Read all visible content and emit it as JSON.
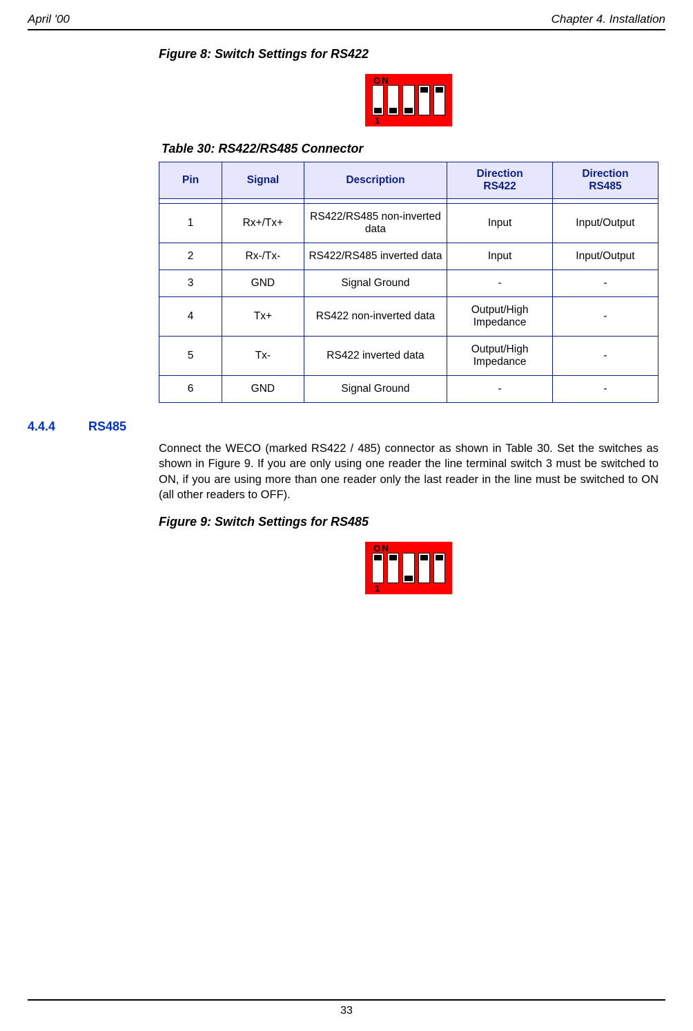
{
  "header": {
    "left": "April '00",
    "right": "Chapter 4. Installation"
  },
  "figure8": {
    "caption": "Figure 8: Switch Settings for RS422",
    "on_label": "ON",
    "one_label": "1",
    "switches": [
      "down",
      "down",
      "down",
      "up",
      "up"
    ]
  },
  "table30": {
    "caption": "Table 30: RS422/RS485 Connector",
    "columns": [
      "Pin",
      "Signal",
      "Description",
      "Direction RS422",
      "Direction RS485"
    ],
    "rows": [
      [
        "1",
        "Rx+/Tx+",
        "RS422/RS485 non-inverted data",
        "Input",
        "Input/Output"
      ],
      [
        "2",
        "Rx-/Tx-",
        "RS422/RS485 inverted data",
        "Input",
        "Input/Output"
      ],
      [
        "3",
        "GND",
        "Signal Ground",
        "-",
        "-"
      ],
      [
        "4",
        "Tx+",
        "RS422 non-inverted data",
        "Output/High Impedance",
        "-"
      ],
      [
        "5",
        "Tx-",
        "RS422 inverted data",
        "Output/High Impedance",
        "-"
      ],
      [
        "6",
        "GND",
        "Signal Ground",
        "-",
        "-"
      ]
    ]
  },
  "section": {
    "number": "4.4.4",
    "title": "RS485",
    "body": "Connect the WECO (marked RS422 / 485) connector as shown in Table 30. Set the switches as shown in Figure 9. If you are only using one reader the line terminal switch 3 must be switched to ON, if you are using more than one reader only the last reader in the line must be switched to ON (all other readers to OFF)."
  },
  "figure9": {
    "caption": "Figure 9: Switch Settings for RS485",
    "on_label": "ON",
    "one_label": "1",
    "switches": [
      "up",
      "up",
      "down",
      "up",
      "up"
    ]
  },
  "footer": {
    "page": "33"
  }
}
